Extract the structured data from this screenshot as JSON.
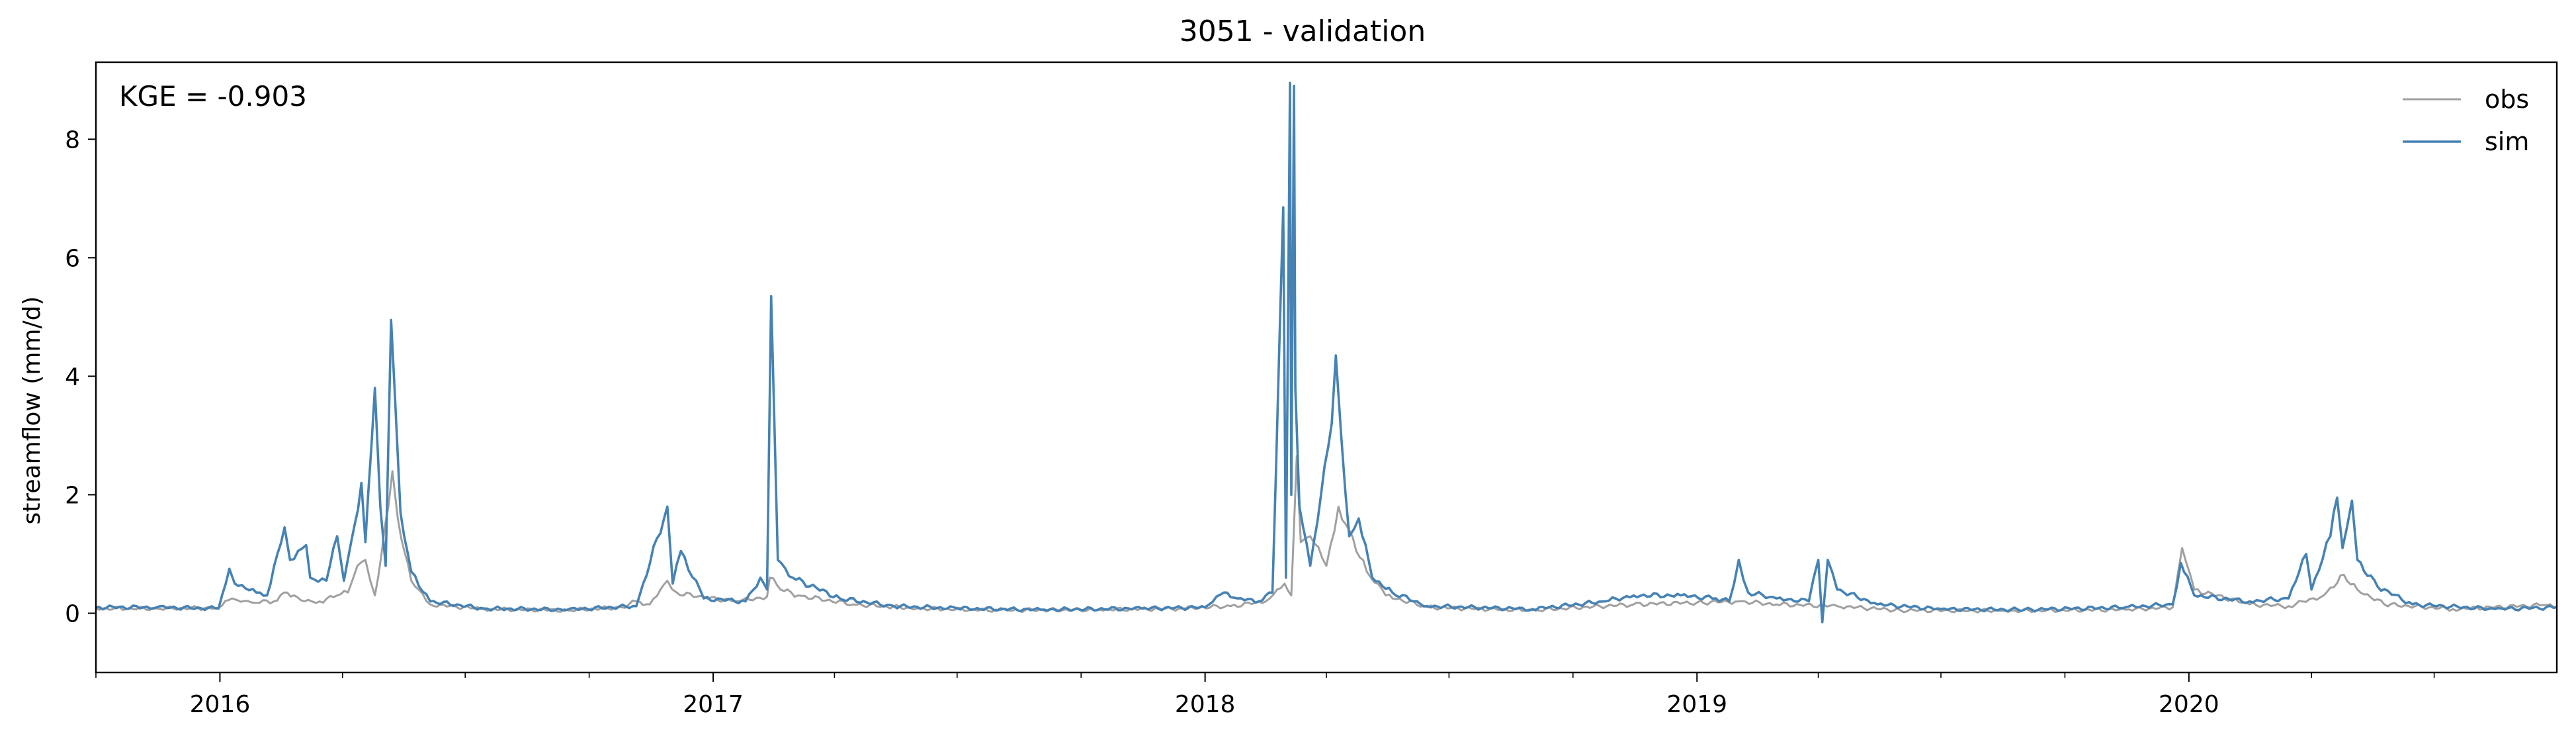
{
  "chart_data": {
    "type": "line",
    "title": "3051 - validation",
    "xlabel": "",
    "ylabel": "streamflow (mm/d)",
    "annotation": "KGE = -0.903",
    "xlim": [
      "2015-10-01",
      "2020-09-30"
    ],
    "ylim": [
      -1.0,
      9.3
    ],
    "y_ticks": [
      0,
      2,
      4,
      6,
      8
    ],
    "x_tick_labels": [
      "2016",
      "2017",
      "2018",
      "2019",
      "2020"
    ],
    "x_tick_dates": [
      "2016-01-01",
      "2017-01-01",
      "2018-01-01",
      "2019-01-01",
      "2020-01-01"
    ],
    "x_minor_ticks": "quarterly",
    "grid": false,
    "legend": {
      "position": "top-right"
    },
    "series": [
      {
        "name": "obs",
        "color": "#a0a0a0",
        "points": [
          [
            "2015-10-01",
            0.08
          ],
          [
            "2015-11-15",
            0.08
          ],
          [
            "2015-12-31",
            0.09
          ],
          [
            "2016-01-10",
            0.25
          ],
          [
            "2016-01-14",
            0.22
          ],
          [
            "2016-01-25",
            0.18
          ],
          [
            "2016-02-10",
            0.2
          ],
          [
            "2016-02-20",
            0.35
          ],
          [
            "2016-03-01",
            0.22
          ],
          [
            "2016-03-15",
            0.2
          ],
          [
            "2016-03-28",
            0.3
          ],
          [
            "2016-04-05",
            0.35
          ],
          [
            "2016-04-12",
            0.8
          ],
          [
            "2016-04-18",
            0.9
          ],
          [
            "2016-04-25",
            0.3
          ],
          [
            "2016-05-05",
            1.8
          ],
          [
            "2016-05-08",
            2.4
          ],
          [
            "2016-05-12",
            1.6
          ],
          [
            "2016-05-22",
            0.55
          ],
          [
            "2016-06-05",
            0.15
          ],
          [
            "2016-07-15",
            0.07
          ],
          [
            "2016-09-15",
            0.05
          ],
          [
            "2016-10-25",
            0.1
          ],
          [
            "2016-11-05",
            0.2
          ],
          [
            "2016-11-15",
            0.15
          ],
          [
            "2016-11-28",
            0.55
          ],
          [
            "2016-12-05",
            0.35
          ],
          [
            "2016-12-20",
            0.28
          ],
          [
            "2017-01-20",
            0.2
          ],
          [
            "2017-02-10",
            0.28
          ],
          [
            "2017-02-12",
            0.6
          ],
          [
            "2017-02-20",
            0.4
          ],
          [
            "2017-03-05",
            0.3
          ],
          [
            "2017-04-15",
            0.15
          ],
          [
            "2017-06-01",
            0.08
          ],
          [
            "2017-08-01",
            0.05
          ],
          [
            "2017-10-15",
            0.06
          ],
          [
            "2017-12-15",
            0.08
          ],
          [
            "2018-01-20",
            0.12
          ],
          [
            "2018-02-15",
            0.2
          ],
          [
            "2018-03-01",
            0.5
          ],
          [
            "2018-03-06",
            0.3
          ],
          [
            "2018-03-10",
            2.65
          ],
          [
            "2018-03-13",
            1.2
          ],
          [
            "2018-03-20",
            1.3
          ],
          [
            "2018-04-01",
            0.8
          ],
          [
            "2018-04-10",
            1.8
          ],
          [
            "2018-04-18",
            1.4
          ],
          [
            "2018-05-01",
            0.7
          ],
          [
            "2018-05-15",
            0.3
          ],
          [
            "2018-06-15",
            0.1
          ],
          [
            "2018-09-01",
            0.05
          ],
          [
            "2018-11-15",
            0.15
          ],
          [
            "2019-01-01",
            0.18
          ],
          [
            "2019-02-01",
            0.2
          ],
          [
            "2019-03-01",
            0.15
          ],
          [
            "2019-04-15",
            0.12
          ],
          [
            "2019-06-01",
            0.05
          ],
          [
            "2019-08-15",
            0.04
          ],
          [
            "2019-11-15",
            0.06
          ],
          [
            "2019-12-20",
            0.1
          ],
          [
            "2019-12-27",
            1.1
          ],
          [
            "2020-01-05",
            0.4
          ],
          [
            "2020-02-15",
            0.15
          ],
          [
            "2020-03-15",
            0.12
          ],
          [
            "2020-04-10",
            0.3
          ],
          [
            "2020-04-25",
            0.65
          ],
          [
            "2020-05-05",
            0.4
          ],
          [
            "2020-05-25",
            0.15
          ],
          [
            "2020-07-15",
            0.07
          ],
          [
            "2020-09-20",
            0.14
          ],
          [
            "2020-09-30",
            0.1
          ]
        ]
      },
      {
        "name": "sim",
        "color": "#4682b4",
        "points": [
          [
            "2015-10-01",
            0.1
          ],
          [
            "2015-11-15",
            0.1
          ],
          [
            "2015-12-31",
            0.08
          ],
          [
            "2016-01-08",
            0.75
          ],
          [
            "2016-01-12",
            0.5
          ],
          [
            "2016-01-28",
            0.35
          ],
          [
            "2016-02-05",
            0.3
          ],
          [
            "2016-02-18",
            1.45
          ],
          [
            "2016-02-22",
            0.9
          ],
          [
            "2016-03-05",
            1.15
          ],
          [
            "2016-03-08",
            0.6
          ],
          [
            "2016-03-20",
            0.55
          ],
          [
            "2016-03-28",
            1.3
          ],
          [
            "2016-04-02",
            0.55
          ],
          [
            "2016-04-10",
            1.5
          ],
          [
            "2016-04-15",
            2.2
          ],
          [
            "2016-04-18",
            1.2
          ],
          [
            "2016-04-20",
            2.0
          ],
          [
            "2016-04-25",
            3.8
          ],
          [
            "2016-04-29",
            1.8
          ],
          [
            "2016-05-03",
            0.8
          ],
          [
            "2016-05-07",
            4.95
          ],
          [
            "2016-05-10",
            3.6
          ],
          [
            "2016-05-14",
            1.7
          ],
          [
            "2016-05-22",
            0.7
          ],
          [
            "2016-06-05",
            0.2
          ],
          [
            "2016-07-15",
            0.08
          ],
          [
            "2016-09-15",
            0.06
          ],
          [
            "2016-11-05",
            0.12
          ],
          [
            "2016-11-28",
            1.8
          ],
          [
            "2016-12-02",
            0.5
          ],
          [
            "2016-12-08",
            1.05
          ],
          [
            "2016-12-25",
            0.25
          ],
          [
            "2017-01-25",
            0.2
          ],
          [
            "2017-02-05",
            0.6
          ],
          [
            "2017-02-10",
            0.4
          ],
          [
            "2017-02-13",
            5.35
          ],
          [
            "2017-02-18",
            0.9
          ],
          [
            "2017-03-01",
            0.6
          ],
          [
            "2017-04-05",
            0.25
          ],
          [
            "2017-05-15",
            0.12
          ],
          [
            "2017-07-01",
            0.08
          ],
          [
            "2017-09-01",
            0.06
          ],
          [
            "2017-11-15",
            0.08
          ],
          [
            "2018-01-01",
            0.1
          ],
          [
            "2018-01-15",
            0.35
          ],
          [
            "2018-01-25",
            0.25
          ],
          [
            "2018-02-10",
            0.2
          ],
          [
            "2018-02-20",
            0.35
          ],
          [
            "2018-02-28",
            6.85
          ],
          [
            "2018-03-02",
            0.6
          ],
          [
            "2018-03-05",
            8.95
          ],
          [
            "2018-03-06",
            2.0
          ],
          [
            "2018-03-08",
            8.9
          ],
          [
            "2018-03-09",
            3.8
          ],
          [
            "2018-03-12",
            1.8
          ],
          [
            "2018-03-20",
            0.8
          ],
          [
            "2018-03-28",
            2.0
          ],
          [
            "2018-04-05",
            3.2
          ],
          [
            "2018-04-08",
            4.35
          ],
          [
            "2018-04-12",
            3.0
          ],
          [
            "2018-04-18",
            1.3
          ],
          [
            "2018-04-25",
            1.6
          ],
          [
            "2018-05-05",
            0.6
          ],
          [
            "2018-05-20",
            0.35
          ],
          [
            "2018-06-15",
            0.12
          ],
          [
            "2018-09-01",
            0.07
          ],
          [
            "2018-10-25",
            0.2
          ],
          [
            "2018-11-15",
            0.3
          ],
          [
            "2018-12-20",
            0.3
          ],
          [
            "2019-01-15",
            0.25
          ],
          [
            "2019-01-25",
            0.2
          ],
          [
            "2019-02-01",
            0.9
          ],
          [
            "2019-02-08",
            0.35
          ],
          [
            "2019-03-01",
            0.25
          ],
          [
            "2019-03-25",
            0.2
          ],
          [
            "2019-04-01",
            0.9
          ],
          [
            "2019-04-04",
            -0.15
          ],
          [
            "2019-04-08",
            0.9
          ],
          [
            "2019-04-15",
            0.4
          ],
          [
            "2019-05-15",
            0.15
          ],
          [
            "2019-07-01",
            0.07
          ],
          [
            "2019-09-01",
            0.06
          ],
          [
            "2019-11-15",
            0.1
          ],
          [
            "2019-12-20",
            0.15
          ],
          [
            "2019-12-26",
            0.85
          ],
          [
            "2020-01-05",
            0.3
          ],
          [
            "2020-02-15",
            0.2
          ],
          [
            "2020-03-15",
            0.25
          ],
          [
            "2020-03-28",
            1.0
          ],
          [
            "2020-04-01",
            0.4
          ],
          [
            "2020-04-15",
            1.3
          ],
          [
            "2020-04-20",
            1.95
          ],
          [
            "2020-04-24",
            1.1
          ],
          [
            "2020-05-01",
            1.9
          ],
          [
            "2020-05-05",
            0.9
          ],
          [
            "2020-05-20",
            0.45
          ],
          [
            "2020-06-15",
            0.15
          ],
          [
            "2020-08-15",
            0.07
          ],
          [
            "2020-09-30",
            0.1
          ]
        ]
      }
    ]
  }
}
